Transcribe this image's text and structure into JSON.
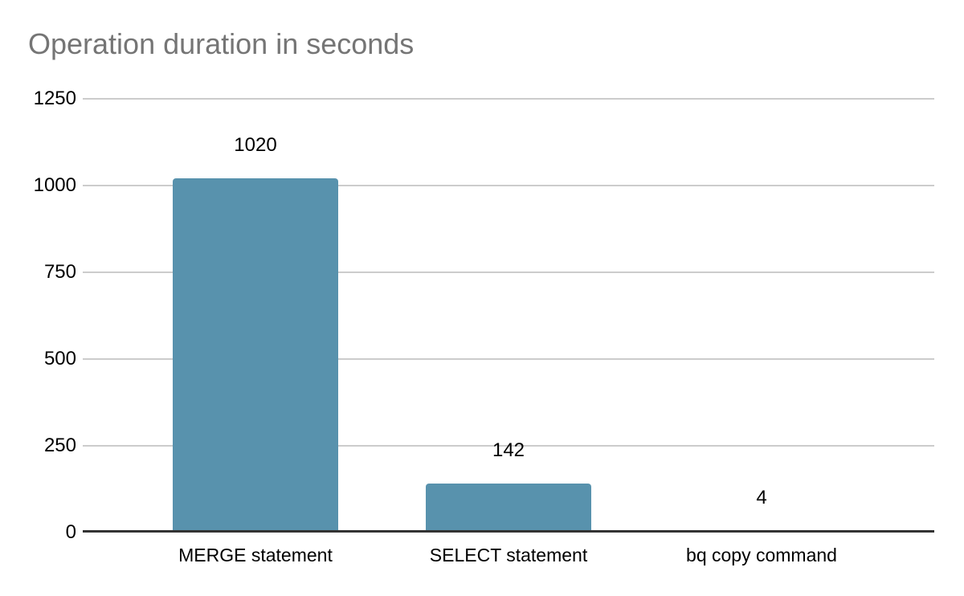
{
  "chart_data": {
    "type": "bar",
    "title": "Operation duration in seconds",
    "categories": [
      "MERGE statement",
      "SELECT statement",
      "bq copy command"
    ],
    "values": [
      1020,
      142,
      4
    ],
    "data_labels": [
      "1020",
      "142",
      "4"
    ],
    "xlabel": "",
    "ylabel": "",
    "ylim": [
      0,
      1250
    ],
    "yticks": [
      0,
      250,
      500,
      750,
      1000,
      1250
    ],
    "grid": true,
    "legend": "none",
    "colors": {
      "bar": "#5892ad",
      "title": "#757575",
      "gridline": "#cccccc",
      "axis": "#333333",
      "label": "#000000",
      "background": "#ffffff"
    }
  }
}
